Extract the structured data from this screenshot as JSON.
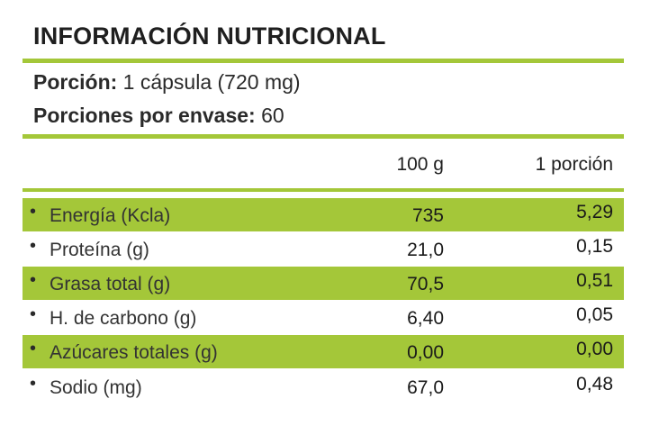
{
  "title": "INFORMACIÓN NUTRICIONAL",
  "serving": {
    "size_label": "Porción:",
    "size_value": "1 cápsula (720 mg)",
    "per_container_label": "Porciones por envase:",
    "per_container_value": "60"
  },
  "columns": {
    "per_100g": "100 g",
    "per_serving": "1 porción"
  },
  "bullet": "•",
  "rows": [
    {
      "name": "Energía (Kcla)",
      "per_100g": "735",
      "per_serving": "5,29",
      "shaded": true
    },
    {
      "name": "Proteína (g)",
      "per_100g": "21,0",
      "per_serving": "0,15",
      "shaded": false
    },
    {
      "name": "Grasa total (g)",
      "per_100g": "70,5",
      "per_serving": "0,51",
      "shaded": true
    },
    {
      "name": "H. de carbono (g)",
      "per_100g": "6,40",
      "per_serving": "0,05",
      "shaded": false
    },
    {
      "name": "Azúcares totales (g)",
      "per_100g": "0,00",
      "per_serving": "0,00",
      "shaded": true
    },
    {
      "name": "Sodio (mg)",
      "per_100g": "67,0",
      "per_serving": "0,48",
      "shaded": false
    }
  ],
  "colors": {
    "accent_green": "#a4c739",
    "text": "#1f1f1f",
    "background": "#ffffff"
  }
}
